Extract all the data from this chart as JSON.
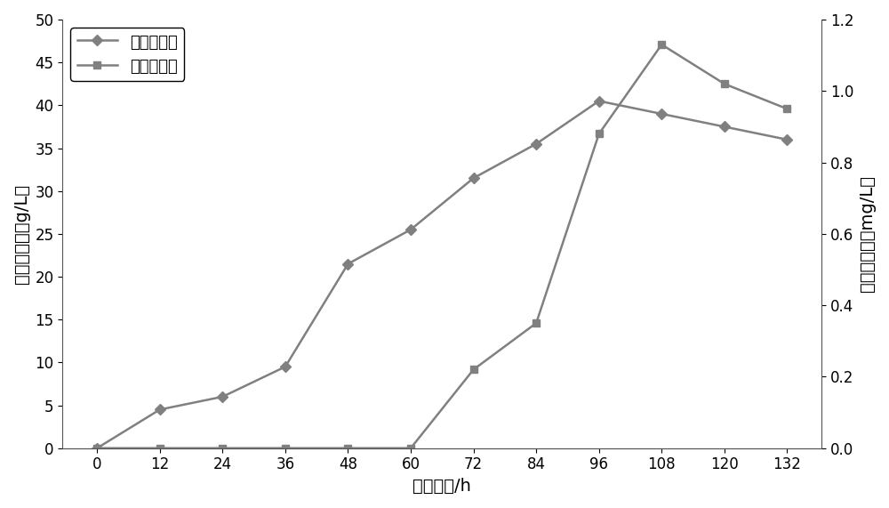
{
  "x": [
    0,
    12,
    24,
    36,
    48,
    60,
    72,
    84,
    96,
    108,
    120,
    132
  ],
  "biomass": [
    0,
    4.5,
    6.0,
    9.5,
    21.5,
    25.5,
    31.5,
    35.5,
    40.5,
    39.0,
    37.5,
    36.0
  ],
  "taxol": [
    0,
    0,
    0,
    0,
    0,
    0,
    0.22,
    0.35,
    0.88,
    1.13,
    1.02,
    0.95
  ],
  "line_color": "#808080",
  "xlabel": "发酵时间/h",
  "ylabel_left": "细胞生物量（g/L）",
  "ylabel_right": "紫杉醇产量（mg/L）",
  "legend_biomass": "细胞生物量",
  "legend_taxol": "紫杉醇产量",
  "ylim_left": [
    0,
    50
  ],
  "ylim_right": [
    0,
    1.2
  ],
  "yticks_left": [
    0,
    5,
    10,
    15,
    20,
    25,
    30,
    35,
    40,
    45,
    50
  ],
  "yticks_right": [
    0,
    0.2,
    0.4,
    0.6,
    0.8,
    1.0,
    1.2
  ],
  "xticks": [
    0,
    12,
    24,
    36,
    48,
    60,
    72,
    84,
    96,
    108,
    120,
    132
  ],
  "background_color": "#ffffff",
  "font_size_labels": 14,
  "font_size_ticks": 12,
  "font_size_legend": 13
}
